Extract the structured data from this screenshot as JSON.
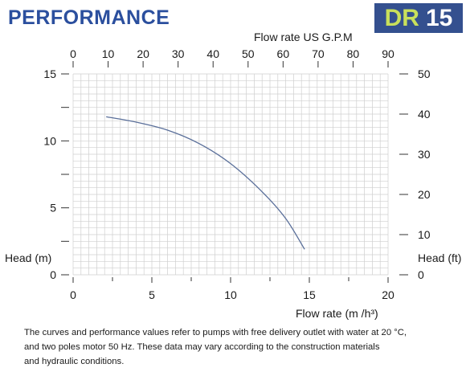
{
  "header": {
    "title": "PERFORMANCE",
    "model_prefix": "DR",
    "model_number": "15"
  },
  "chart_data": {
    "type": "line",
    "x_primary": {
      "label": "Flow rate",
      "unit": "(m /h³)",
      "min": 0,
      "max": 20,
      "ticks": [
        0,
        5,
        10,
        15,
        20
      ]
    },
    "x_secondary": {
      "label": "Flow rate US  G.P.M",
      "min": 0,
      "max": 90,
      "ticks": [
        0,
        10,
        20,
        30,
        40,
        50,
        60,
        70,
        80,
        90
      ]
    },
    "y_primary": {
      "label": "Head (m)",
      "min": 0,
      "max": 15,
      "ticks": [
        0,
        5,
        10,
        15
      ]
    },
    "y_secondary": {
      "label": "Head (ft)",
      "min": 0,
      "max": 50,
      "ticks": [
        0,
        10,
        20,
        30,
        40,
        50
      ]
    },
    "grid": true,
    "series": [
      {
        "color": "#5a6f9a",
        "x": [
          2.1,
          4,
          6,
          8,
          10,
          12,
          13.5,
          14.7
        ],
        "y": [
          11.8,
          11.4,
          10.8,
          9.8,
          8.3,
          6.2,
          4.2,
          1.9
        ]
      }
    ]
  },
  "footnote": {
    "lines": [
      "The curves and performance values refer to pumps with free delivery outlet with water at 20 °C,",
      "and two poles motor 50 Hz. These data may vary according to the construction materials",
      "and hydraulic conditions."
    ]
  }
}
